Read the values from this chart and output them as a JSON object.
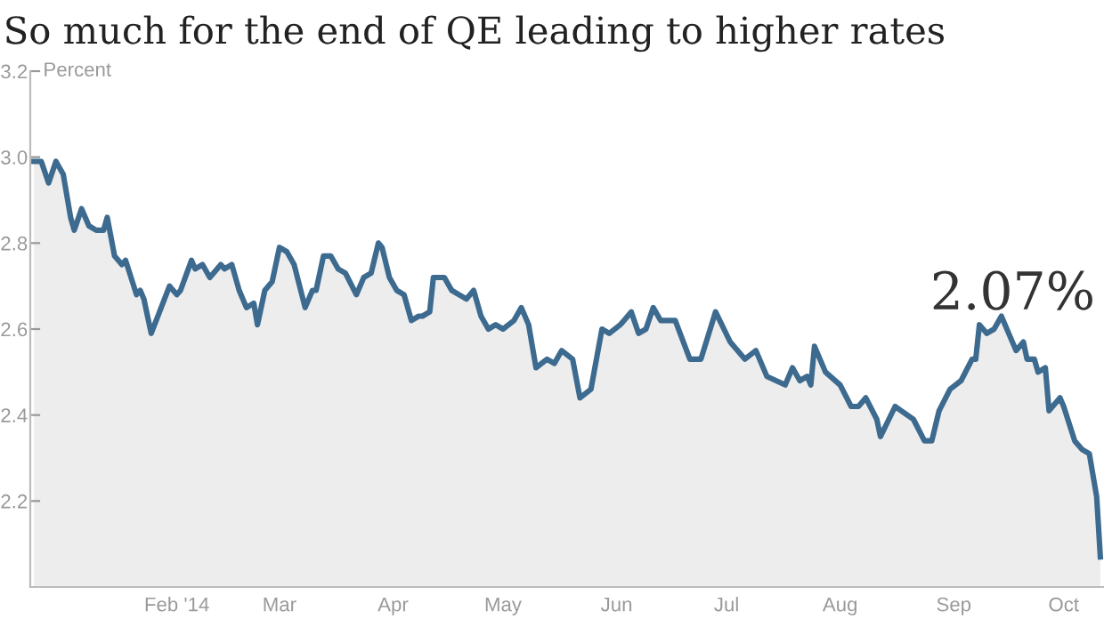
{
  "chart_data": {
    "type": "area",
    "title": "So much for the end of QE leading to higher rates",
    "ylabel": "Percent",
    "x": [
      "2013-12-24",
      "2013-12-26",
      "2013-12-28",
      "2013-12-30",
      "2014-01-01",
      "2014-01-03",
      "2014-01-04",
      "2014-01-06",
      "2014-01-08",
      "2014-01-10",
      "2014-01-12",
      "2014-01-13",
      "2014-01-15",
      "2014-01-17",
      "2014-01-18",
      "2014-01-21",
      "2014-01-22",
      "2014-01-23",
      "2014-01-25",
      "2014-01-30",
      "2014-02-01",
      "2014-02-02",
      "2014-02-05",
      "2014-02-06",
      "2014-02-08",
      "2014-02-10",
      "2014-02-13",
      "2014-02-14",
      "2014-02-16",
      "2014-02-18",
      "2014-02-20",
      "2014-02-22",
      "2014-02-23",
      "2014-02-25",
      "2014-02-27",
      "2014-03-01",
      "2014-03-03",
      "2014-03-05",
      "2014-03-08",
      "2014-03-10",
      "2014-03-11",
      "2014-03-13",
      "2014-03-15",
      "2014-03-17",
      "2014-03-19",
      "2014-03-22",
      "2014-03-24",
      "2014-03-26",
      "2014-03-28",
      "2014-03-29",
      "2014-03-31",
      "2014-04-02",
      "2014-04-04",
      "2014-04-06",
      "2014-04-08",
      "2014-04-09",
      "2014-04-11",
      "2014-04-12",
      "2014-04-15",
      "2014-04-17",
      "2014-04-19",
      "2014-04-21",
      "2014-04-23",
      "2014-04-25",
      "2014-04-27",
      "2014-04-29",
      "2014-05-01",
      "2014-05-04",
      "2014-05-06",
      "2014-05-08",
      "2014-05-10",
      "2014-05-13",
      "2014-05-15",
      "2014-05-17",
      "2014-05-20",
      "2014-05-22",
      "2014-05-25",
      "2014-05-28",
      "2014-05-30",
      "2014-06-02",
      "2014-06-05",
      "2014-06-07",
      "2014-06-09",
      "2014-06-11",
      "2014-06-13",
      "2014-06-17",
      "2014-06-21",
      "2014-06-24",
      "2014-06-28",
      "2014-07-02",
      "2014-07-06",
      "2014-07-09",
      "2014-07-12",
      "2014-07-17",
      "2014-07-19",
      "2014-07-21",
      "2014-07-23",
      "2014-07-24",
      "2014-07-25",
      "2014-07-28",
      "2014-08-01",
      "2014-08-04",
      "2014-08-06",
      "2014-08-08",
      "2014-08-11",
      "2014-08-12",
      "2014-08-16",
      "2014-08-21",
      "2014-08-24",
      "2014-08-26",
      "2014-08-28",
      "2014-08-31",
      "2014-09-03",
      "2014-09-06",
      "2014-09-07",
      "2014-09-08",
      "2014-09-10",
      "2014-09-12",
      "2014-09-14",
      "2014-09-16",
      "2014-09-18",
      "2014-09-20",
      "2014-09-21",
      "2014-09-23",
      "2014-09-24",
      "2014-09-26",
      "2014-09-27",
      "2014-09-30",
      "2014-10-01",
      "2014-10-04",
      "2014-10-06",
      "2014-10-08",
      "2014-10-10",
      "2014-10-11"
    ],
    "series": [
      {
        "color": "#3d6a8f",
        "values": [
          2.99,
          2.99,
          2.94,
          2.99,
          2.96,
          2.86,
          2.83,
          2.88,
          2.84,
          2.83,
          2.83,
          2.86,
          2.77,
          2.75,
          2.76,
          2.68,
          2.69,
          2.67,
          2.59,
          2.7,
          2.68,
          2.69,
          2.76,
          2.74,
          2.75,
          2.72,
          2.75,
          2.74,
          2.75,
          2.69,
          2.65,
          2.66,
          2.61,
          2.69,
          2.71,
          2.79,
          2.78,
          2.75,
          2.65,
          2.69,
          2.69,
          2.77,
          2.77,
          2.74,
          2.73,
          2.68,
          2.72,
          2.73,
          2.8,
          2.79,
          2.72,
          2.69,
          2.68,
          2.62,
          2.63,
          2.63,
          2.64,
          2.72,
          2.72,
          2.69,
          2.68,
          2.67,
          2.69,
          2.63,
          2.6,
          2.61,
          2.6,
          2.62,
          2.65,
          2.61,
          2.51,
          2.53,
          2.52,
          2.55,
          2.53,
          2.44,
          2.46,
          2.6,
          2.59,
          2.61,
          2.64,
          2.59,
          2.6,
          2.65,
          2.62,
          2.62,
          2.53,
          2.53,
          2.64,
          2.57,
          2.53,
          2.55,
          2.49,
          2.47,
          2.51,
          2.48,
          2.49,
          2.47,
          2.56,
          2.5,
          2.47,
          2.42,
          2.42,
          2.44,
          2.39,
          2.35,
          2.42,
          2.39,
          2.34,
          2.34,
          2.41,
          2.46,
          2.48,
          2.53,
          2.53,
          2.61,
          2.59,
          2.6,
          2.63,
          2.59,
          2.55,
          2.57,
          2.53,
          2.53,
          2.5,
          2.51,
          2.41,
          2.44,
          2.42,
          2.34,
          2.32,
          2.31,
          2.21,
          2.07
        ]
      }
    ],
    "xlim": [
      "2013-12-23",
      "2014-10-12"
    ],
    "xticks": [
      {
        "value": "2014-02-01",
        "label": "Feb '14"
      },
      {
        "value": "2014-03-01",
        "label": "Mar"
      },
      {
        "value": "2014-04-01",
        "label": "Apr"
      },
      {
        "value": "2014-05-01",
        "label": "May"
      },
      {
        "value": "2014-06-01",
        "label": "Jun"
      },
      {
        "value": "2014-07-01",
        "label": "Jul"
      },
      {
        "value": "2014-08-01",
        "label": "Aug"
      },
      {
        "value": "2014-09-01",
        "label": "Sep"
      },
      {
        "value": "2014-10-01",
        "label": "Oct"
      }
    ],
    "ylim": [
      2.0,
      3.2
    ],
    "yticks": [
      {
        "value": 2.2,
        "label": "2.2"
      },
      {
        "value": 2.4,
        "label": "2.4"
      },
      {
        "value": 2.6,
        "label": "2.6"
      },
      {
        "value": 2.8,
        "label": "2.8"
      },
      {
        "value": 3.0,
        "label": "3.0"
      },
      {
        "value": 3.2,
        "label": "3.2"
      }
    ],
    "annotations": [
      "2.07%"
    ],
    "grid": false,
    "legend": false
  }
}
